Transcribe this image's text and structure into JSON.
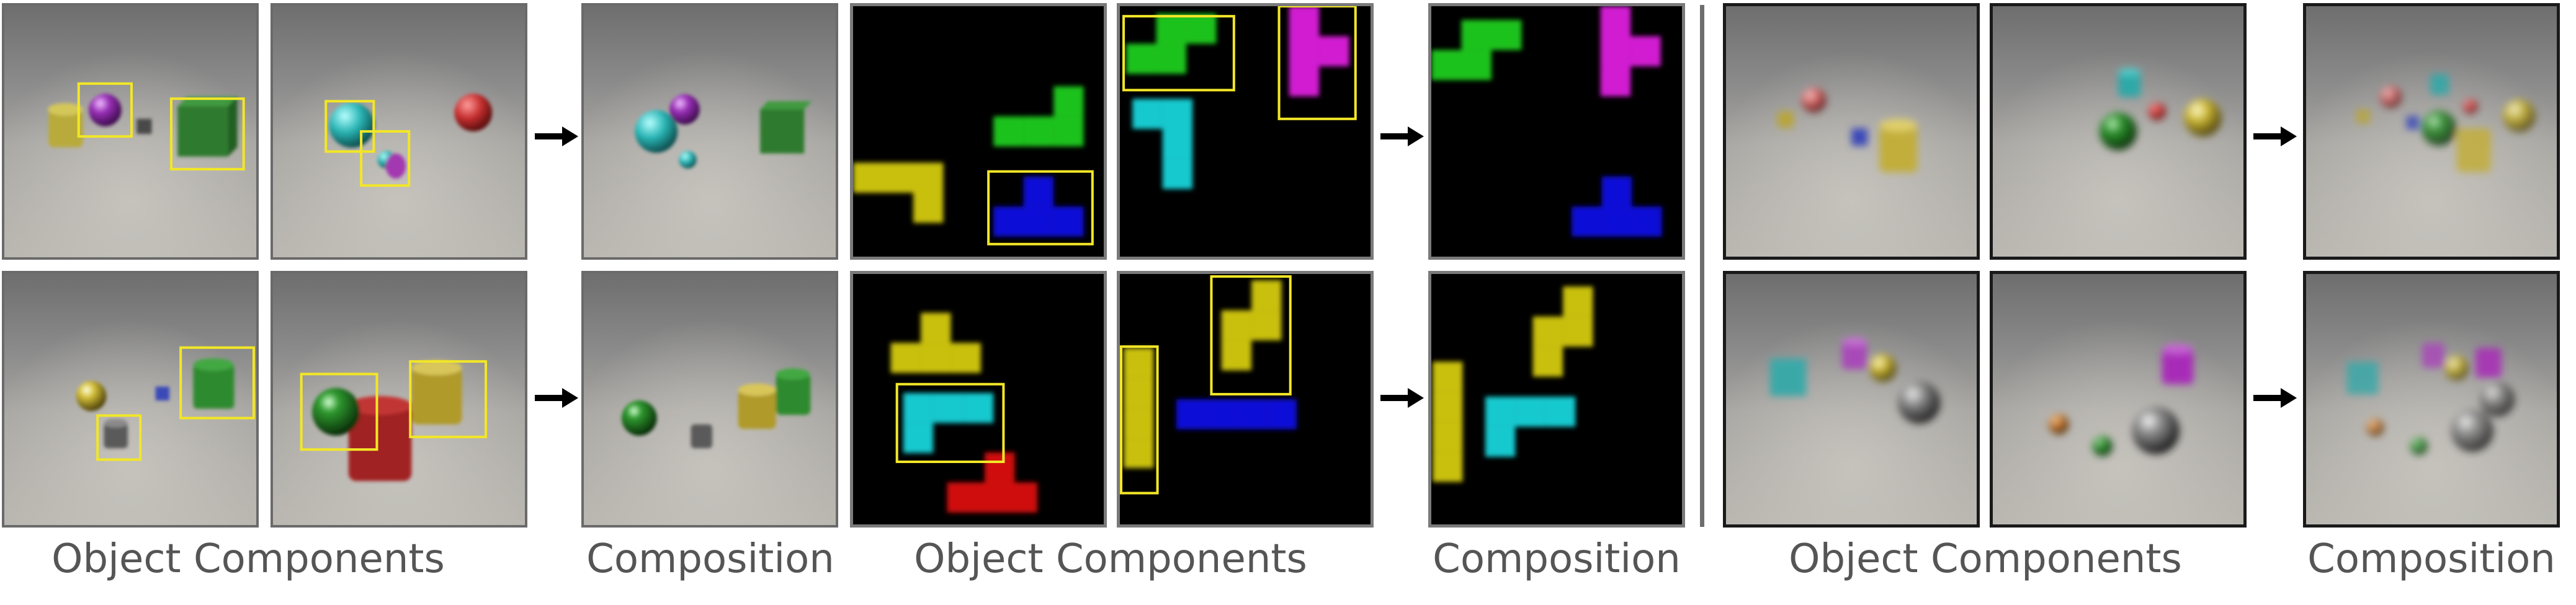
{
  "figure": {
    "captions": {
      "clevr_components": "Object Components",
      "clevr_composition": "Composition",
      "tetris_components": "Object Components",
      "tetris_composition": "Composition",
      "right_components": "Object Components",
      "right_composition": "Composition"
    },
    "colors": {
      "highlight_box": "#f2e627",
      "arrow": "#000000",
      "divider": "#6e6e6e",
      "tetris_green": "#1fc21f",
      "tetris_yellow": "#c9c00f",
      "tetris_blue": "#1010d8",
      "tetris_cyan": "#12c9cf",
      "tetris_magenta": "#d21fd2",
      "tetris_red": "#d01010"
    }
  }
}
